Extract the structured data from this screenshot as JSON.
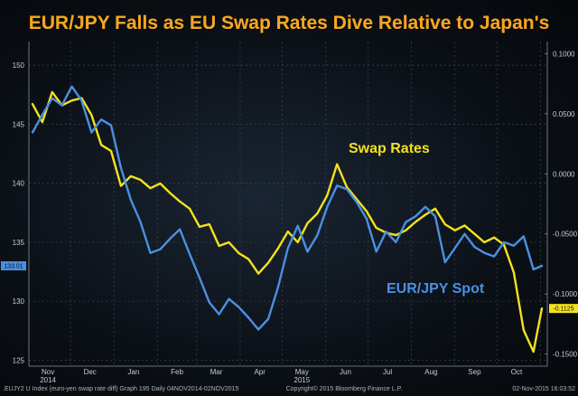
{
  "chart_data": {
    "type": "line",
    "title": "EUR/JPY Falls as EU Swap Rates Dive Relative to Japan's",
    "x_month_labels": [
      "Nov",
      "Dec",
      "Jan",
      "Feb",
      "Mar",
      "Apr",
      "May",
      "Jun",
      "Jul",
      "Aug",
      "Sep",
      "Oct"
    ],
    "x_year_labels": [
      {
        "label": "2014",
        "month": "Nov"
      },
      {
        "label": "2015",
        "month": "May"
      }
    ],
    "x_range": [
      "2014-11-04",
      "2015-11-02"
    ],
    "left_axis": {
      "ticks": [
        125,
        130,
        135,
        140,
        145,
        150
      ],
      "ylim": [
        124.5,
        152
      ]
    },
    "right_axis": {
      "ticks": [
        "0.1000",
        "0.0500",
        "0.0000",
        "-0.0500",
        "-0.1000",
        "-0.1500"
      ],
      "ylim": [
        -0.16,
        0.11
      ]
    },
    "grid": true,
    "series": [
      {
        "name": "Swap Rates",
        "axis": "right",
        "color": "#f4e21c",
        "last_value_label": "-0.1125",
        "values": [
          [
            "2014-11-04",
            0.058
          ],
          [
            "2014-11-11",
            0.043
          ],
          [
            "2014-11-18",
            0.068
          ],
          [
            "2014-11-25",
            0.057
          ],
          [
            "2014-12-02",
            0.061
          ],
          [
            "2014-12-09",
            0.063
          ],
          [
            "2014-12-16",
            0.049
          ],
          [
            "2014-12-23",
            0.024
          ],
          [
            "2014-12-30",
            0.019
          ],
          [
            "2015-01-06",
            -0.01
          ],
          [
            "2015-01-13",
            -0.002
          ],
          [
            "2015-01-20",
            -0.005
          ],
          [
            "2015-01-27",
            -0.012
          ],
          [
            "2015-02-03",
            -0.008
          ],
          [
            "2015-02-10",
            -0.016
          ],
          [
            "2015-02-17",
            -0.023
          ],
          [
            "2015-02-24",
            -0.029
          ],
          [
            "2015-03-03",
            -0.044
          ],
          [
            "2015-03-10",
            -0.042
          ],
          [
            "2015-03-17",
            -0.06
          ],
          [
            "2015-03-24",
            -0.057
          ],
          [
            "2015-03-31",
            -0.066
          ],
          [
            "2015-04-07",
            -0.071
          ],
          [
            "2015-04-14",
            -0.083
          ],
          [
            "2015-04-21",
            -0.074
          ],
          [
            "2015-04-28",
            -0.062
          ],
          [
            "2015-05-05",
            -0.048
          ],
          [
            "2015-05-12",
            -0.057
          ],
          [
            "2015-05-19",
            -0.041
          ],
          [
            "2015-05-26",
            -0.033
          ],
          [
            "2015-06-02",
            -0.018
          ],
          [
            "2015-06-09",
            0.008
          ],
          [
            "2015-06-16",
            -0.011
          ],
          [
            "2015-06-23",
            -0.021
          ],
          [
            "2015-06-30",
            -0.031
          ],
          [
            "2015-07-07",
            -0.045
          ],
          [
            "2015-07-14",
            -0.049
          ],
          [
            "2015-07-21",
            -0.051
          ],
          [
            "2015-07-28",
            -0.047
          ],
          [
            "2015-08-04",
            -0.04
          ],
          [
            "2015-08-11",
            -0.034
          ],
          [
            "2015-08-18",
            -0.029
          ],
          [
            "2015-08-25",
            -0.042
          ],
          [
            "2015-09-01",
            -0.047
          ],
          [
            "2015-09-08",
            -0.043
          ],
          [
            "2015-09-15",
            -0.05
          ],
          [
            "2015-09-22",
            -0.057
          ],
          [
            "2015-09-29",
            -0.053
          ],
          [
            "2015-10-06",
            -0.059
          ],
          [
            "2015-10-13",
            -0.082
          ],
          [
            "2015-10-20",
            -0.13
          ],
          [
            "2015-10-27",
            -0.148
          ],
          [
            "2015-11-02",
            -0.112
          ]
        ]
      },
      {
        "name": "EUR/JPY Spot",
        "axis": "left",
        "color": "#4a90e2",
        "last_value_label": "133.01",
        "values": [
          [
            "2014-11-04",
            144.3
          ],
          [
            "2014-11-11",
            145.8
          ],
          [
            "2014-11-18",
            147.2
          ],
          [
            "2014-11-25",
            146.6
          ],
          [
            "2014-12-02",
            148.2
          ],
          [
            "2014-12-09",
            147.0
          ],
          [
            "2014-12-16",
            144.3
          ],
          [
            "2014-12-23",
            145.4
          ],
          [
            "2014-12-30",
            144.9
          ],
          [
            "2015-01-06",
            141.3
          ],
          [
            "2015-01-13",
            138.6
          ],
          [
            "2015-01-20",
            136.7
          ],
          [
            "2015-01-27",
            134.1
          ],
          [
            "2015-02-03",
            134.4
          ],
          [
            "2015-02-10",
            135.3
          ],
          [
            "2015-02-17",
            136.1
          ],
          [
            "2015-02-24",
            134.0
          ],
          [
            "2015-03-03",
            132.0
          ],
          [
            "2015-03-10",
            129.9
          ],
          [
            "2015-03-17",
            128.9
          ],
          [
            "2015-03-24",
            130.2
          ],
          [
            "2015-03-31",
            129.5
          ],
          [
            "2015-04-07",
            128.6
          ],
          [
            "2015-04-14",
            127.6
          ],
          [
            "2015-04-21",
            128.5
          ],
          [
            "2015-04-28",
            131.2
          ],
          [
            "2015-05-05",
            134.5
          ],
          [
            "2015-05-12",
            136.4
          ],
          [
            "2015-05-19",
            134.2
          ],
          [
            "2015-05-26",
            135.6
          ],
          [
            "2015-06-02",
            138.0
          ],
          [
            "2015-06-09",
            139.8
          ],
          [
            "2015-06-16",
            139.5
          ],
          [
            "2015-06-23",
            138.4
          ],
          [
            "2015-06-30",
            137.0
          ],
          [
            "2015-07-07",
            134.2
          ],
          [
            "2015-07-14",
            135.9
          ],
          [
            "2015-07-21",
            135.0
          ],
          [
            "2015-07-28",
            136.7
          ],
          [
            "2015-08-04",
            137.2
          ],
          [
            "2015-08-11",
            138.0
          ],
          [
            "2015-08-18",
            137.2
          ],
          [
            "2015-08-25",
            133.3
          ],
          [
            "2015-09-01",
            134.5
          ],
          [
            "2015-09-08",
            135.7
          ],
          [
            "2015-09-15",
            134.6
          ],
          [
            "2015-09-22",
            134.1
          ],
          [
            "2015-09-29",
            133.8
          ],
          [
            "2015-10-06",
            135.0
          ],
          [
            "2015-10-13",
            134.7
          ],
          [
            "2015-10-20",
            135.5
          ],
          [
            "2015-10-27",
            132.7
          ],
          [
            "2015-11-02",
            133.0
          ]
        ]
      }
    ],
    "annotations": [
      {
        "text": "Swap Rates",
        "color": "#f4e21c"
      },
      {
        "text": "EUR/JPY Spot",
        "color": "#4a90e2"
      }
    ]
  },
  "footer": {
    "left": ".EUJY2 U Index (euro-yen swap rate diff) Graph 195  Daily 04NOV2014-02NOV2015",
    "center": "Copyright© 2015 Bloomberg Finance L.P.",
    "right": "02-Nov-2015 16:03:52"
  }
}
